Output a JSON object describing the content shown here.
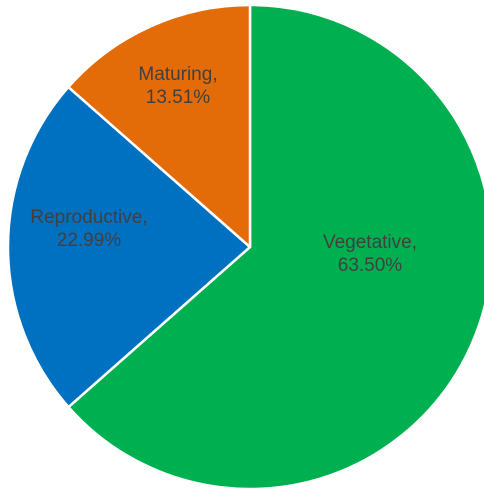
{
  "chart_data": {
    "type": "pie",
    "slices": [
      {
        "label": "Vegetative",
        "value": 63.5,
        "value_text": "63.50%",
        "color": "#00b050"
      },
      {
        "label": "Reproductive",
        "value": 22.99,
        "value_text": "22.99%",
        "color": "#0070c0"
      },
      {
        "label": "Maturing",
        "value": 13.51,
        "value_text": "13.51%",
        "color": "#e36c09"
      }
    ],
    "start_direction": "12 o'clock",
    "direction": "clockwise",
    "legend": "none",
    "data_labels": "inside, category name and percentage"
  }
}
